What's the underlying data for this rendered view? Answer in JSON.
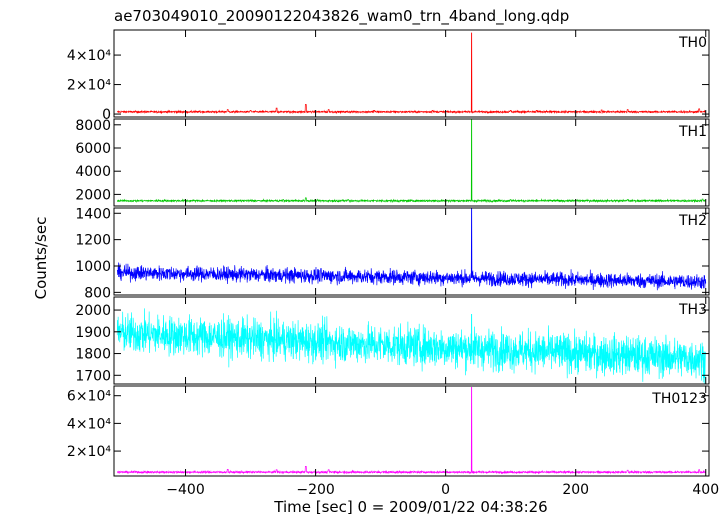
{
  "chart_data": {
    "type": "line",
    "title": "ae703049010_20090122043826_wam0_trn_4band_long.qdp",
    "xlabel": "Time [sec] 0 = 2009/01/22 04:38:26",
    "ylabel": "Counts/sec",
    "xlim": [
      -510,
      405
    ],
    "xticks": [
      -400,
      -200,
      0,
      200,
      400
    ],
    "xtick_labels": [
      "−400",
      "−200",
      "0",
      "200",
      "400"
    ],
    "grid": false,
    "spike_time": 40,
    "series": [
      {
        "name": "TH0",
        "color": "#ff0000",
        "ylim": [
          -2000,
          57000
        ],
        "yticks": [
          0,
          20000,
          40000
        ],
        "ytick_labels": [
          "0",
          "2×10⁴",
          "4×10⁴"
        ],
        "baseline": 1500,
        "noise": 300,
        "peak": 55000,
        "features": [
          [
            -215,
            6500
          ],
          [
            -260,
            4000
          ],
          [
            -335,
            3000
          ],
          [
            -300,
            2500
          ],
          [
            -180,
            3000
          ],
          [
            -110,
            2500
          ],
          [
            -20,
            2500
          ],
          [
            100,
            2500
          ],
          [
            140,
            2500
          ],
          [
            240,
            2800
          ],
          [
            280,
            3000
          ],
          [
            390,
            3500
          ]
        ]
      },
      {
        "name": "TH1",
        "color": "#00c800",
        "ylim": [
          1000,
          8500
        ],
        "yticks": [
          2000,
          4000,
          6000,
          8000
        ],
        "ytick_labels": [
          "2000",
          "4000",
          "6000",
          "8000"
        ],
        "baseline": 1450,
        "noise": 40,
        "peak": 8500,
        "features": [
          [
            -215,
            1700
          ],
          [
            -250,
            1550
          ],
          [
            -150,
            1550
          ],
          [
            100,
            1550
          ],
          [
            280,
            1550
          ],
          [
            395,
            1600
          ]
        ]
      },
      {
        "name": "TH2",
        "color": "#0000ff",
        "ylim": [
          780,
          1440
        ],
        "yticks": [
          800,
          1000,
          1200,
          1400
        ],
        "ytick_labels": [
          "800",
          "1000",
          "1200",
          "1400"
        ],
        "baseline_start": 950,
        "baseline_end": 880,
        "noise": 28,
        "peak": 1440,
        "features": []
      },
      {
        "name": "TH3",
        "color": "#00ffff",
        "ylim": [
          1660,
          2060
        ],
        "yticks": [
          1700,
          1800,
          1900,
          2000
        ],
        "ytick_labels": [
          "1700",
          "1800",
          "1900",
          "2000"
        ],
        "baseline_start": 1895,
        "baseline_end": 1775,
        "noise": 45,
        "peak": 1980,
        "features": []
      },
      {
        "name": "TH0123",
        "color": "#ff00ff",
        "ylim": [
          2000,
          67000
        ],
        "yticks": [
          20000,
          40000,
          60000
        ],
        "ytick_labels": [
          "2×10⁴",
          "4×10⁴",
          "6×10⁴"
        ],
        "baseline": 4800,
        "noise": 350,
        "peak": 66000,
        "features": [
          [
            -215,
            9000
          ],
          [
            -335,
            6800
          ],
          [
            -260,
            6500
          ],
          [
            -180,
            6500
          ],
          [
            280,
            6200
          ],
          [
            390,
            6500
          ]
        ]
      }
    ]
  }
}
